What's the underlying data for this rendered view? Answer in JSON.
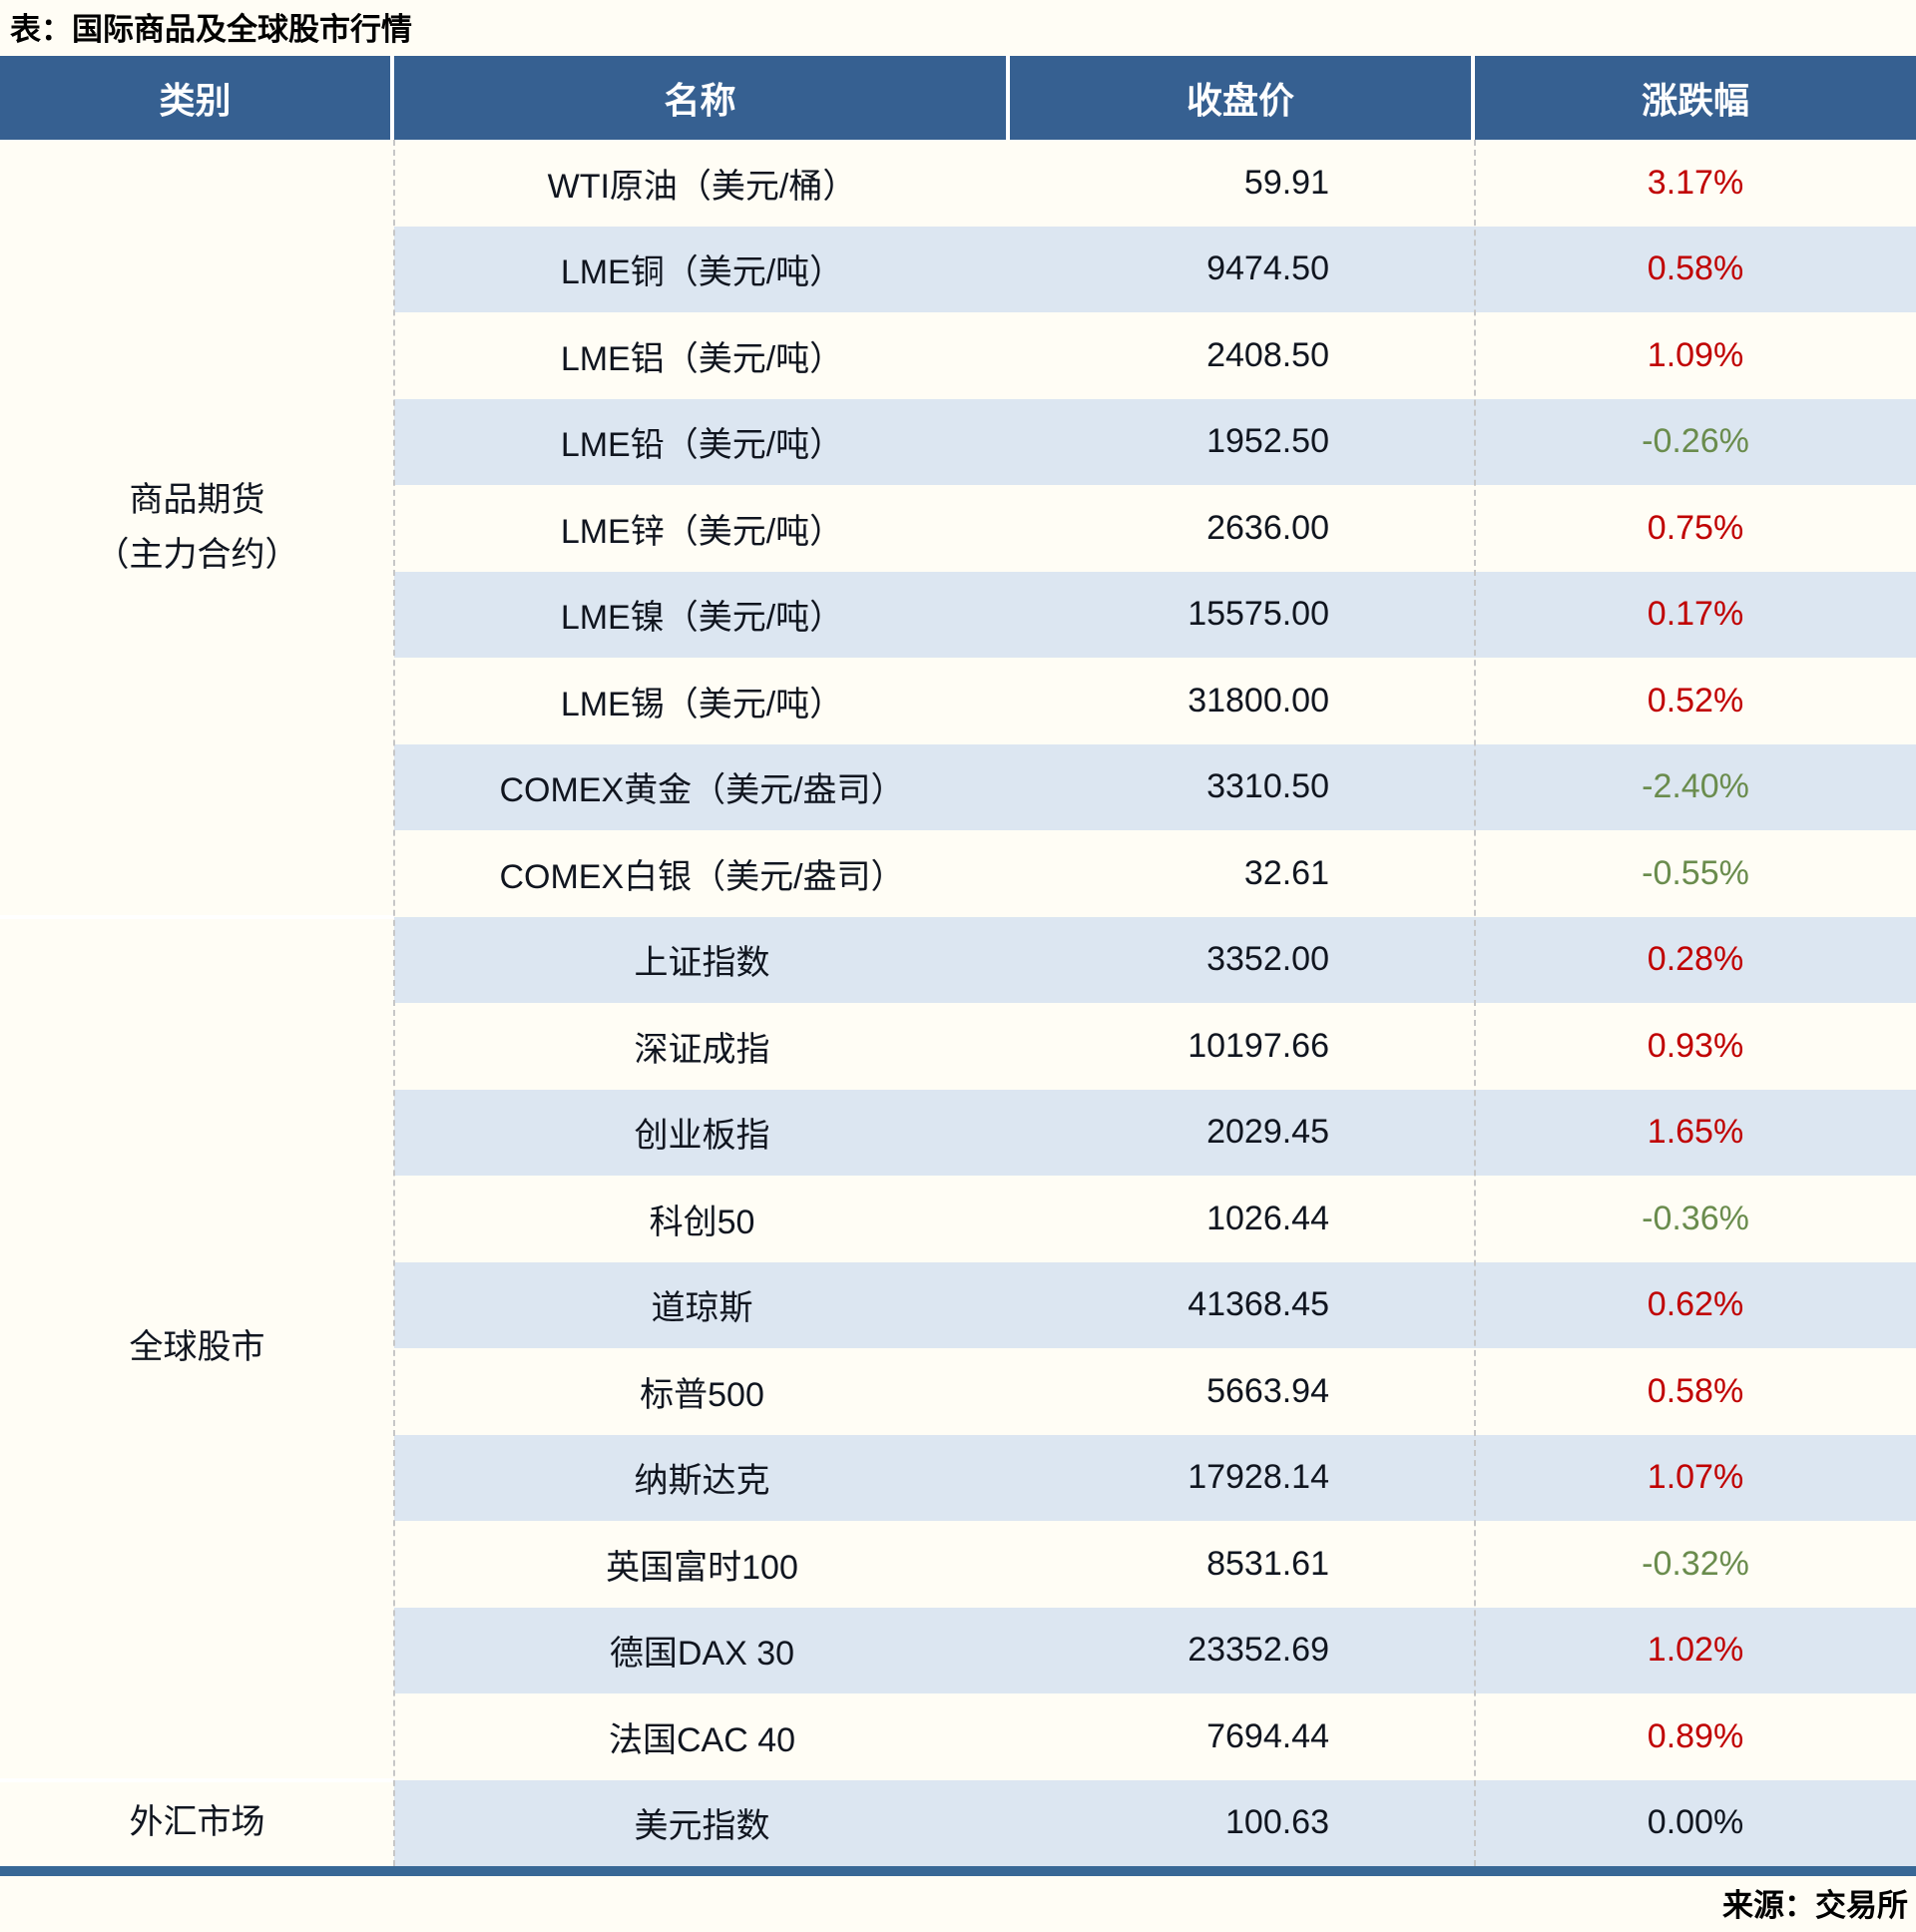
{
  "title": "表：国际商品及全球股市行情",
  "source": "来源：交易所",
  "colors": {
    "header_bg": "#366091",
    "stripe": "#DCE6F1",
    "up_red": "#C00000",
    "down_green": "#6A8C4D",
    "flat_black": "#10151F",
    "bottom_bar": "#386896"
  },
  "table": {
    "headers": [
      "类别",
      "名称",
      "收盘价",
      "涨跌幅"
    ],
    "sections": [
      {
        "category": "商品期货（主力合约）",
        "category_lines": [
          "商品期货",
          "（主力合约）"
        ],
        "rows": [
          {
            "name": "WTI原油（美元/桶）",
            "close": "59.91",
            "change": "3.17%",
            "direction": "up"
          },
          {
            "name": "LME铜（美元/吨）",
            "close": "9474.50",
            "change": "0.58%",
            "direction": "up"
          },
          {
            "name": "LME铝（美元/吨）",
            "close": "2408.50",
            "change": "1.09%",
            "direction": "up"
          },
          {
            "name": "LME铅（美元/吨）",
            "close": "1952.50",
            "change": "-0.26%",
            "direction": "down"
          },
          {
            "name": "LME锌（美元/吨）",
            "close": "2636.00",
            "change": "0.75%",
            "direction": "up"
          },
          {
            "name": "LME镍（美元/吨）",
            "close": "15575.00",
            "change": "0.17%",
            "direction": "up"
          },
          {
            "name": "LME锡（美元/吨）",
            "close": "31800.00",
            "change": "0.52%",
            "direction": "up"
          },
          {
            "name": "COMEX黄金（美元/盎司）",
            "close": "3310.50",
            "change": "-2.40%",
            "direction": "down"
          },
          {
            "name": "COMEX白银（美元/盎司）",
            "close": "32.61",
            "change": "-0.55%",
            "direction": "down"
          }
        ]
      },
      {
        "category": "全球股市",
        "category_lines": [
          "全球股市"
        ],
        "rows": [
          {
            "name": "上证指数",
            "close": "3352.00",
            "change": "0.28%",
            "direction": "up"
          },
          {
            "name": "深证成指",
            "close": "10197.66",
            "change": "0.93%",
            "direction": "up"
          },
          {
            "name": "创业板指",
            "close": "2029.45",
            "change": "1.65%",
            "direction": "up"
          },
          {
            "name": "科创50",
            "close": "1026.44",
            "change": "-0.36%",
            "direction": "down"
          },
          {
            "name": "道琼斯",
            "close": "41368.45",
            "change": "0.62%",
            "direction": "up"
          },
          {
            "name": "标普500",
            "close": "5663.94",
            "change": "0.58%",
            "direction": "up"
          },
          {
            "name": "纳斯达克",
            "close": "17928.14",
            "change": "1.07%",
            "direction": "up"
          },
          {
            "name": "英国富时100",
            "close": "8531.61",
            "change": "-0.32%",
            "direction": "down"
          },
          {
            "name": "德国DAX 30",
            "close": "23352.69",
            "change": "1.02%",
            "direction": "up"
          },
          {
            "name": "法国CAC 40",
            "close": "7694.44",
            "change": "0.89%",
            "direction": "up"
          }
        ]
      },
      {
        "category": "外汇市场",
        "category_lines": [
          "外汇市场"
        ],
        "rows": [
          {
            "name": "美元指数",
            "close": "100.63",
            "change": "0.00%",
            "direction": "flat"
          }
        ]
      }
    ]
  }
}
